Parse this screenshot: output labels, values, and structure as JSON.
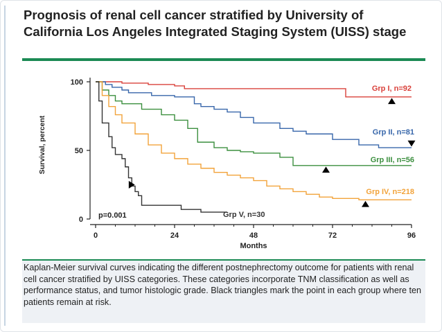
{
  "page": {
    "title": "Prognosis of renal cell cancer stratified by University of California Los Angeles Integrated Staging System (UISS) stage",
    "caption": "Kaplan-Meier survival curves indicating the different postnephrectomy outcome for patients with renal cell cancer stratified by UISS categories. These categories incorporate TNM classification as well as performance status, and tumor histologic grade. Black triangles mark the point in each group where ten patients remain at risk."
  },
  "chart_data": {
    "type": "line",
    "step": true,
    "title": "",
    "xlabel": "Months",
    "ylabel": "Survival, percent",
    "xlim": [
      0,
      96
    ],
    "ylim": [
      0,
      100
    ],
    "xticks": [
      0,
      24,
      48,
      72,
      96
    ],
    "yticks": [
      0,
      50,
      100
    ],
    "annotation": "p=0.001",
    "grid": false,
    "series": [
      {
        "name": "Grp I, n=92",
        "color": "#d9403a",
        "x": [
          0,
          8,
          16,
          24,
          27,
          76,
          96
        ],
        "y": [
          100,
          99,
          98,
          97,
          95,
          89,
          89
        ],
        "at_risk_10_marker": {
          "x": 90,
          "y": 86,
          "direction": "up"
        }
      },
      {
        "name": "Grp II, n=81",
        "color": "#3766aa",
        "x": [
          0,
          3,
          5,
          8,
          10,
          17,
          24,
          30,
          32,
          36,
          40,
          44,
          48,
          56,
          60,
          64,
          72,
          80,
          86,
          96
        ],
        "y": [
          100,
          98,
          96,
          94,
          92,
          90,
          89,
          84,
          82,
          80,
          78,
          74,
          70,
          66,
          64,
          62,
          58,
          54,
          52,
          52
        ],
        "at_risk_10_marker": {
          "x": 96,
          "y": 55,
          "direction": "down"
        }
      },
      {
        "name": "Grp III, n=56",
        "color": "#3b8f3e",
        "x": [
          0,
          2,
          4,
          6,
          8,
          14,
          20,
          24,
          28,
          31,
          36,
          40,
          44,
          48,
          56,
          60,
          68,
          72,
          80,
          96
        ],
        "y": [
          100,
          94,
          90,
          86,
          84,
          80,
          76,
          72,
          66,
          56,
          52,
          50,
          49,
          48,
          45,
          39,
          39,
          39,
          39,
          39
        ],
        "at_risk_10_marker": {
          "x": 70,
          "y": 36,
          "direction": "up"
        }
      },
      {
        "name": "Grp IV, n=218",
        "color": "#f2a33a",
        "x": [
          0,
          2,
          4,
          6,
          8,
          12,
          16,
          20,
          24,
          28,
          32,
          36,
          40,
          44,
          48,
          52,
          56,
          60,
          64,
          68,
          72,
          80,
          96
        ],
        "y": [
          100,
          90,
          82,
          76,
          70,
          62,
          54,
          48,
          44,
          40,
          37,
          34,
          32,
          30,
          28,
          24,
          22,
          20,
          18,
          16,
          15,
          14,
          14
        ],
        "at_risk_10_marker": {
          "x": 82,
          "y": 11,
          "direction": "up"
        }
      },
      {
        "name": "Grp V, n=30",
        "color": "#333333",
        "x": [
          0,
          1,
          2,
          4,
          5,
          6,
          8,
          9,
          10,
          11,
          12,
          13,
          14,
          20,
          26,
          32,
          40
        ],
        "y": [
          100,
          86,
          70,
          60,
          52,
          47,
          44,
          38,
          30,
          24,
          20,
          17,
          10,
          10,
          7,
          5,
          5
        ],
        "at_risk_10_marker": {
          "x": 11,
          "y": 25,
          "direction": "right"
        }
      }
    ]
  }
}
